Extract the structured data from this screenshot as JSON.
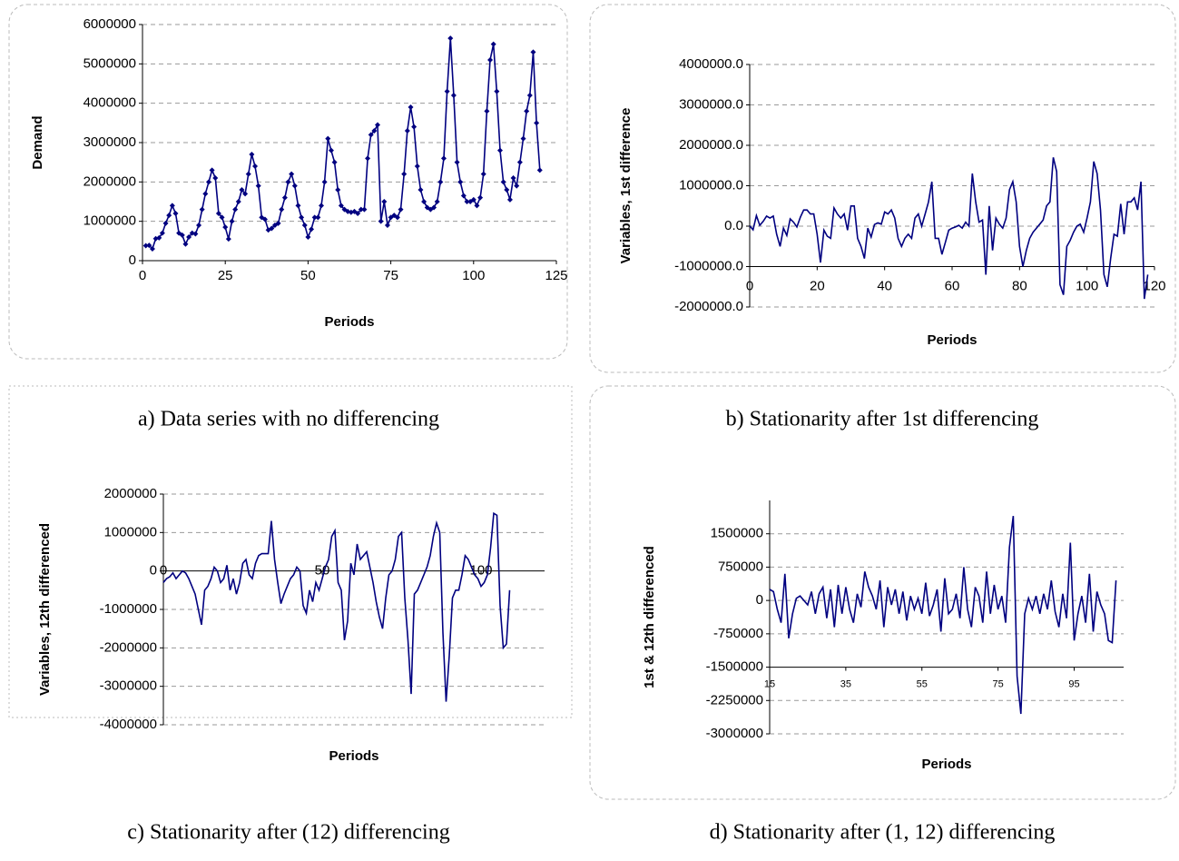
{
  "chart_data": [
    {
      "type": "line",
      "caption": "a) Data series with no differencing",
      "x_label": "Periods",
      "y_label": "Demand",
      "color": "#000080",
      "markers": true,
      "grid": true,
      "xlim": [
        0,
        125
      ],
      "xticks": [
        0,
        25,
        50,
        75,
        100,
        125
      ],
      "ylim": [
        0,
        6000000
      ],
      "yticks": [
        0,
        1000000,
        2000000,
        3000000,
        4000000,
        5000000,
        6000000
      ],
      "x": [
        1,
        2,
        3,
        4,
        5,
        6,
        7,
        8,
        9,
        10,
        11,
        12,
        13,
        14,
        15,
        16,
        17,
        18,
        19,
        20,
        21,
        22,
        23,
        24,
        25,
        26,
        27,
        28,
        29,
        30,
        31,
        32,
        33,
        34,
        35,
        36,
        37,
        38,
        39,
        40,
        41,
        42,
        43,
        44,
        45,
        46,
        47,
        48,
        49,
        50,
        51,
        52,
        53,
        54,
        55,
        56,
        57,
        58,
        59,
        60,
        61,
        62,
        63,
        64,
        65,
        66,
        67,
        68,
        69,
        70,
        71,
        72,
        73,
        74,
        75,
        76,
        77,
        78,
        79,
        80,
        81,
        82,
        83,
        84,
        85,
        86,
        87,
        88,
        89,
        90,
        91,
        92,
        93,
        94,
        95,
        96,
        97,
        98,
        99,
        100,
        101,
        102,
        103,
        104,
        105,
        106,
        107,
        108,
        109,
        110,
        111,
        112,
        113,
        114,
        115,
        116,
        117,
        118,
        119,
        120
      ],
      "values": [
        380000,
        390000,
        300000,
        560000,
        580000,
        700000,
        950000,
        1150000,
        1400000,
        1200000,
        700000,
        650000,
        420000,
        600000,
        700000,
        680000,
        900000,
        1300000,
        1700000,
        2000000,
        2300000,
        2100000,
        1200000,
        1100000,
        850000,
        550000,
        1000000,
        1300000,
        1500000,
        1800000,
        1700000,
        2200000,
        2700000,
        2400000,
        1900000,
        1100000,
        1050000,
        780000,
        820000,
        900000,
        950000,
        1300000,
        1600000,
        2000000,
        2200000,
        1900000,
        1400000,
        1100000,
        900000,
        600000,
        800000,
        1100000,
        1100000,
        1400000,
        2000000,
        3100000,
        2800000,
        2500000,
        1800000,
        1400000,
        1300000,
        1250000,
        1230000,
        1250000,
        1200000,
        1300000,
        1300000,
        2600000,
        3200000,
        3300000,
        3450000,
        1000000,
        1500000,
        900000,
        1100000,
        1150000,
        1100000,
        1300000,
        2200000,
        3300000,
        3900000,
        3400000,
        2400000,
        1800000,
        1500000,
        1350000,
        1300000,
        1350000,
        1500000,
        2000000,
        2600000,
        4300000,
        5650000,
        4200000,
        2500000,
        2000000,
        1650000,
        1500000,
        1500000,
        1550000,
        1400000,
        1600000,
        2200000,
        3800000,
        5100000,
        5500000,
        4300000,
        2800000,
        2000000,
        1800000,
        1550000,
        2100000,
        1900000,
        2500000,
        3100000,
        3800000,
        4200000,
        5300000,
        3500000,
        2300000
      ]
    },
    {
      "type": "line",
      "caption": "b) Stationarity after 1st differencing",
      "x_label": "Periods",
      "y_label": "Variables, 1st difference",
      "color": "#000080",
      "markers": false,
      "grid": true,
      "xlim": [
        0,
        120
      ],
      "xticks": [
        0,
        20,
        40,
        60,
        80,
        100,
        120
      ],
      "ylim": [
        -2000000,
        4000000
      ],
      "yticks": [
        {
          "value": -2000000,
          "label": "-2000000.0"
        },
        {
          "value": -1000000,
          "label": "-1000000.0"
        },
        {
          "value": 0,
          "label": "0.0"
        },
        {
          "value": 1000000,
          "label": "1000000.0"
        },
        {
          "value": 2000000,
          "label": "2000000.0"
        },
        {
          "value": 3000000,
          "label": "3000000.0"
        },
        {
          "value": 4000000,
          "label": "4000000.0"
        }
      ],
      "x": [
        0,
        1,
        2,
        3,
        4,
        5,
        6,
        7,
        8,
        9,
        10,
        11,
        12,
        13,
        14,
        15,
        16,
        17,
        18,
        19,
        20,
        21,
        22,
        23,
        24,
        25,
        26,
        27,
        28,
        29,
        30,
        31,
        32,
        33,
        34,
        35,
        36,
        37,
        38,
        39,
        40,
        41,
        42,
        43,
        44,
        45,
        46,
        47,
        48,
        49,
        50,
        51,
        52,
        53,
        54,
        55,
        56,
        57,
        58,
        59,
        60,
        61,
        62,
        63,
        64,
        65,
        66,
        67,
        68,
        69,
        70,
        71,
        72,
        73,
        74,
        75,
        76,
        77,
        78,
        79,
        80,
        81,
        82,
        83,
        84,
        85,
        86,
        87,
        88,
        89,
        90,
        91,
        92,
        93,
        94,
        95,
        96,
        97,
        98,
        99,
        100,
        101,
        102,
        103,
        104,
        105,
        106,
        107,
        108,
        109,
        110,
        111,
        112,
        113,
        114,
        115,
        116,
        117,
        118
      ],
      "values": [
        10000,
        -90000,
        260000,
        20000,
        120000,
        250000,
        200000,
        250000,
        -200000,
        -500000,
        -50000,
        -230000,
        180000,
        100000,
        -20000,
        220000,
        400000,
        400000,
        300000,
        300000,
        -200000,
        -900000,
        -100000,
        -250000,
        -300000,
        450000,
        300000,
        200000,
        300000,
        -100000,
        500000,
        500000,
        -300000,
        -500000,
        -800000,
        -50000,
        -270000,
        40000,
        80000,
        50000,
        350000,
        300000,
        400000,
        200000,
        -300000,
        -500000,
        -300000,
        -200000,
        -300000,
        200000,
        300000,
        0,
        300000,
        600000,
        1100000,
        -300000,
        -300000,
        -700000,
        -400000,
        -100000,
        -50000,
        -20000,
        20000,
        -50000,
        100000,
        0,
        1300000,
        600000,
        100000,
        150000,
        -1200000,
        500000,
        -600000,
        200000,
        50000,
        -50000,
        200000,
        900000,
        1100000,
        600000,
        -500000,
        -1000000,
        -600000,
        -300000,
        -150000,
        -50000,
        50000,
        150000,
        500000,
        600000,
        1700000,
        1350000,
        -1450000,
        -1700000,
        -500000,
        -350000,
        -150000,
        0,
        50000,
        -150000,
        200000,
        600000,
        1600000,
        1300000,
        400000,
        -1200000,
        -1500000,
        -800000,
        -200000,
        -250000,
        550000,
        -200000,
        600000,
        600000,
        700000,
        400000,
        1100000,
        -1800000,
        -1200000
      ]
    },
    {
      "type": "line",
      "caption": "c) Stationarity after (12) differencing",
      "x_label": "Periods",
      "y_label": "Variables, 12th differenced",
      "color": "#000080",
      "markers": false,
      "grid": true,
      "xlim": [
        0,
        120
      ],
      "xticks": [
        0,
        50,
        100
      ],
      "ylim": [
        -4000000,
        2000000
      ],
      "yticks": [
        -4000000,
        -3000000,
        -2000000,
        -1000000,
        0,
        1000000,
        2000000
      ],
      "x": [
        0,
        1,
        2,
        3,
        4,
        5,
        6,
        7,
        8,
        9,
        10,
        11,
        12,
        13,
        14,
        15,
        16,
        17,
        18,
        19,
        20,
        21,
        22,
        23,
        24,
        25,
        26,
        27,
        28,
        29,
        30,
        31,
        32,
        33,
        34,
        35,
        36,
        37,
        38,
        39,
        40,
        41,
        42,
        43,
        44,
        45,
        46,
        47,
        48,
        49,
        50,
        51,
        52,
        53,
        54,
        55,
        56,
        57,
        58,
        59,
        60,
        61,
        62,
        63,
        64,
        65,
        66,
        67,
        68,
        69,
        70,
        71,
        72,
        73,
        74,
        75,
        76,
        77,
        78,
        79,
        80,
        81,
        82,
        83,
        84,
        85,
        86,
        87,
        88,
        89,
        90,
        91,
        92,
        93,
        94,
        95,
        96,
        97,
        98,
        99,
        100,
        101,
        102,
        103,
        104,
        105,
        106,
        107,
        108,
        109
      ],
      "values": [
        -300000,
        -200000,
        -150000,
        -50000,
        -200000,
        -100000,
        0,
        -50000,
        -200000,
        -400000,
        -600000,
        -1000000,
        -1400000,
        -500000,
        -400000,
        -200000,
        100000,
        0,
        -300000,
        -200000,
        150000,
        -500000,
        -200000,
        -600000,
        -300000,
        200000,
        300000,
        -100000,
        -200000,
        200000,
        400000,
        450000,
        450000,
        450000,
        1300000,
        300000,
        -300000,
        -850000,
        -600000,
        -400000,
        -200000,
        -100000,
        100000,
        0,
        -900000,
        -1100000,
        -500000,
        -800000,
        -300000,
        -500000,
        -200000,
        100000,
        300000,
        900000,
        1050000,
        -300000,
        -500000,
        -1800000,
        -1300000,
        200000,
        -100000,
        700000,
        300000,
        400000,
        500000,
        100000,
        -300000,
        -800000,
        -1200000,
        -1500000,
        -700000,
        -100000,
        0,
        300000,
        900000,
        1000000,
        -700000,
        -1800000,
        -3200000,
        -600000,
        -500000,
        -300000,
        -100000,
        100000,
        400000,
        900000,
        1250000,
        1000000,
        -1600000,
        -3400000,
        -2200000,
        -700000,
        -500000,
        -500000,
        -100000,
        400000,
        300000,
        100000,
        -100000,
        -200000,
        -400000,
        -300000,
        -100000,
        600000,
        1500000,
        1450000,
        -900000,
        -2000000,
        -1900000,
        -500000
      ]
    },
    {
      "type": "line",
      "caption": "d) Stationarity after (1, 12) differencing",
      "x_label": "Periods",
      "y_label": "1st & 12th differenced",
      "color": "#000080",
      "markers": false,
      "grid": true,
      "xlim": [
        15,
        108
      ],
      "xticks": [
        15,
        35,
        55,
        75,
        95
      ],
      "ylim": [
        -3000000,
        2250000
      ],
      "yticks": [
        -3000000,
        -2250000,
        -1500000,
        -750000,
        0,
        750000,
        1500000
      ],
      "x": [
        15,
        16,
        17,
        18,
        19,
        20,
        21,
        22,
        23,
        24,
        25,
        26,
        27,
        28,
        29,
        30,
        31,
        32,
        33,
        34,
        35,
        36,
        37,
        38,
        39,
        40,
        41,
        42,
        43,
        44,
        45,
        46,
        47,
        48,
        49,
        50,
        51,
        52,
        53,
        54,
        55,
        56,
        57,
        58,
        59,
        60,
        61,
        62,
        63,
        64,
        65,
        66,
        67,
        68,
        69,
        70,
        71,
        72,
        73,
        74,
        75,
        76,
        77,
        78,
        79,
        80,
        81,
        82,
        83,
        84,
        85,
        86,
        87,
        88,
        89,
        90,
        91,
        92,
        93,
        94,
        95,
        96,
        97,
        98,
        99,
        100,
        101,
        102,
        103,
        104,
        105,
        106
      ],
      "values": [
        250000,
        200000,
        -200000,
        -500000,
        600000,
        -850000,
        -300000,
        50000,
        100000,
        0,
        -100000,
        200000,
        -300000,
        150000,
        300000,
        -400000,
        250000,
        -600000,
        350000,
        -300000,
        300000,
        -200000,
        -500000,
        150000,
        -150000,
        650000,
        300000,
        100000,
        -200000,
        450000,
        -600000,
        300000,
        -100000,
        250000,
        -300000,
        200000,
        -450000,
        100000,
        -200000,
        50000,
        -300000,
        400000,
        -350000,
        -100000,
        250000,
        -700000,
        500000,
        -300000,
        -200000,
        150000,
        -400000,
        750000,
        -200000,
        -600000,
        300000,
        100000,
        -500000,
        650000,
        -300000,
        350000,
        -200000,
        100000,
        -500000,
        1200000,
        1900000,
        -1700000,
        -2550000,
        -300000,
        50000,
        -200000,
        100000,
        -300000,
        150000,
        -200000,
        450000,
        -250000,
        -600000,
        150000,
        -400000,
        1300000,
        -900000,
        -300000,
        100000,
        -500000,
        600000,
        -700000,
        200000,
        -100000,
        -300000,
        -900000,
        -950000,
        450000
      ]
    }
  ]
}
